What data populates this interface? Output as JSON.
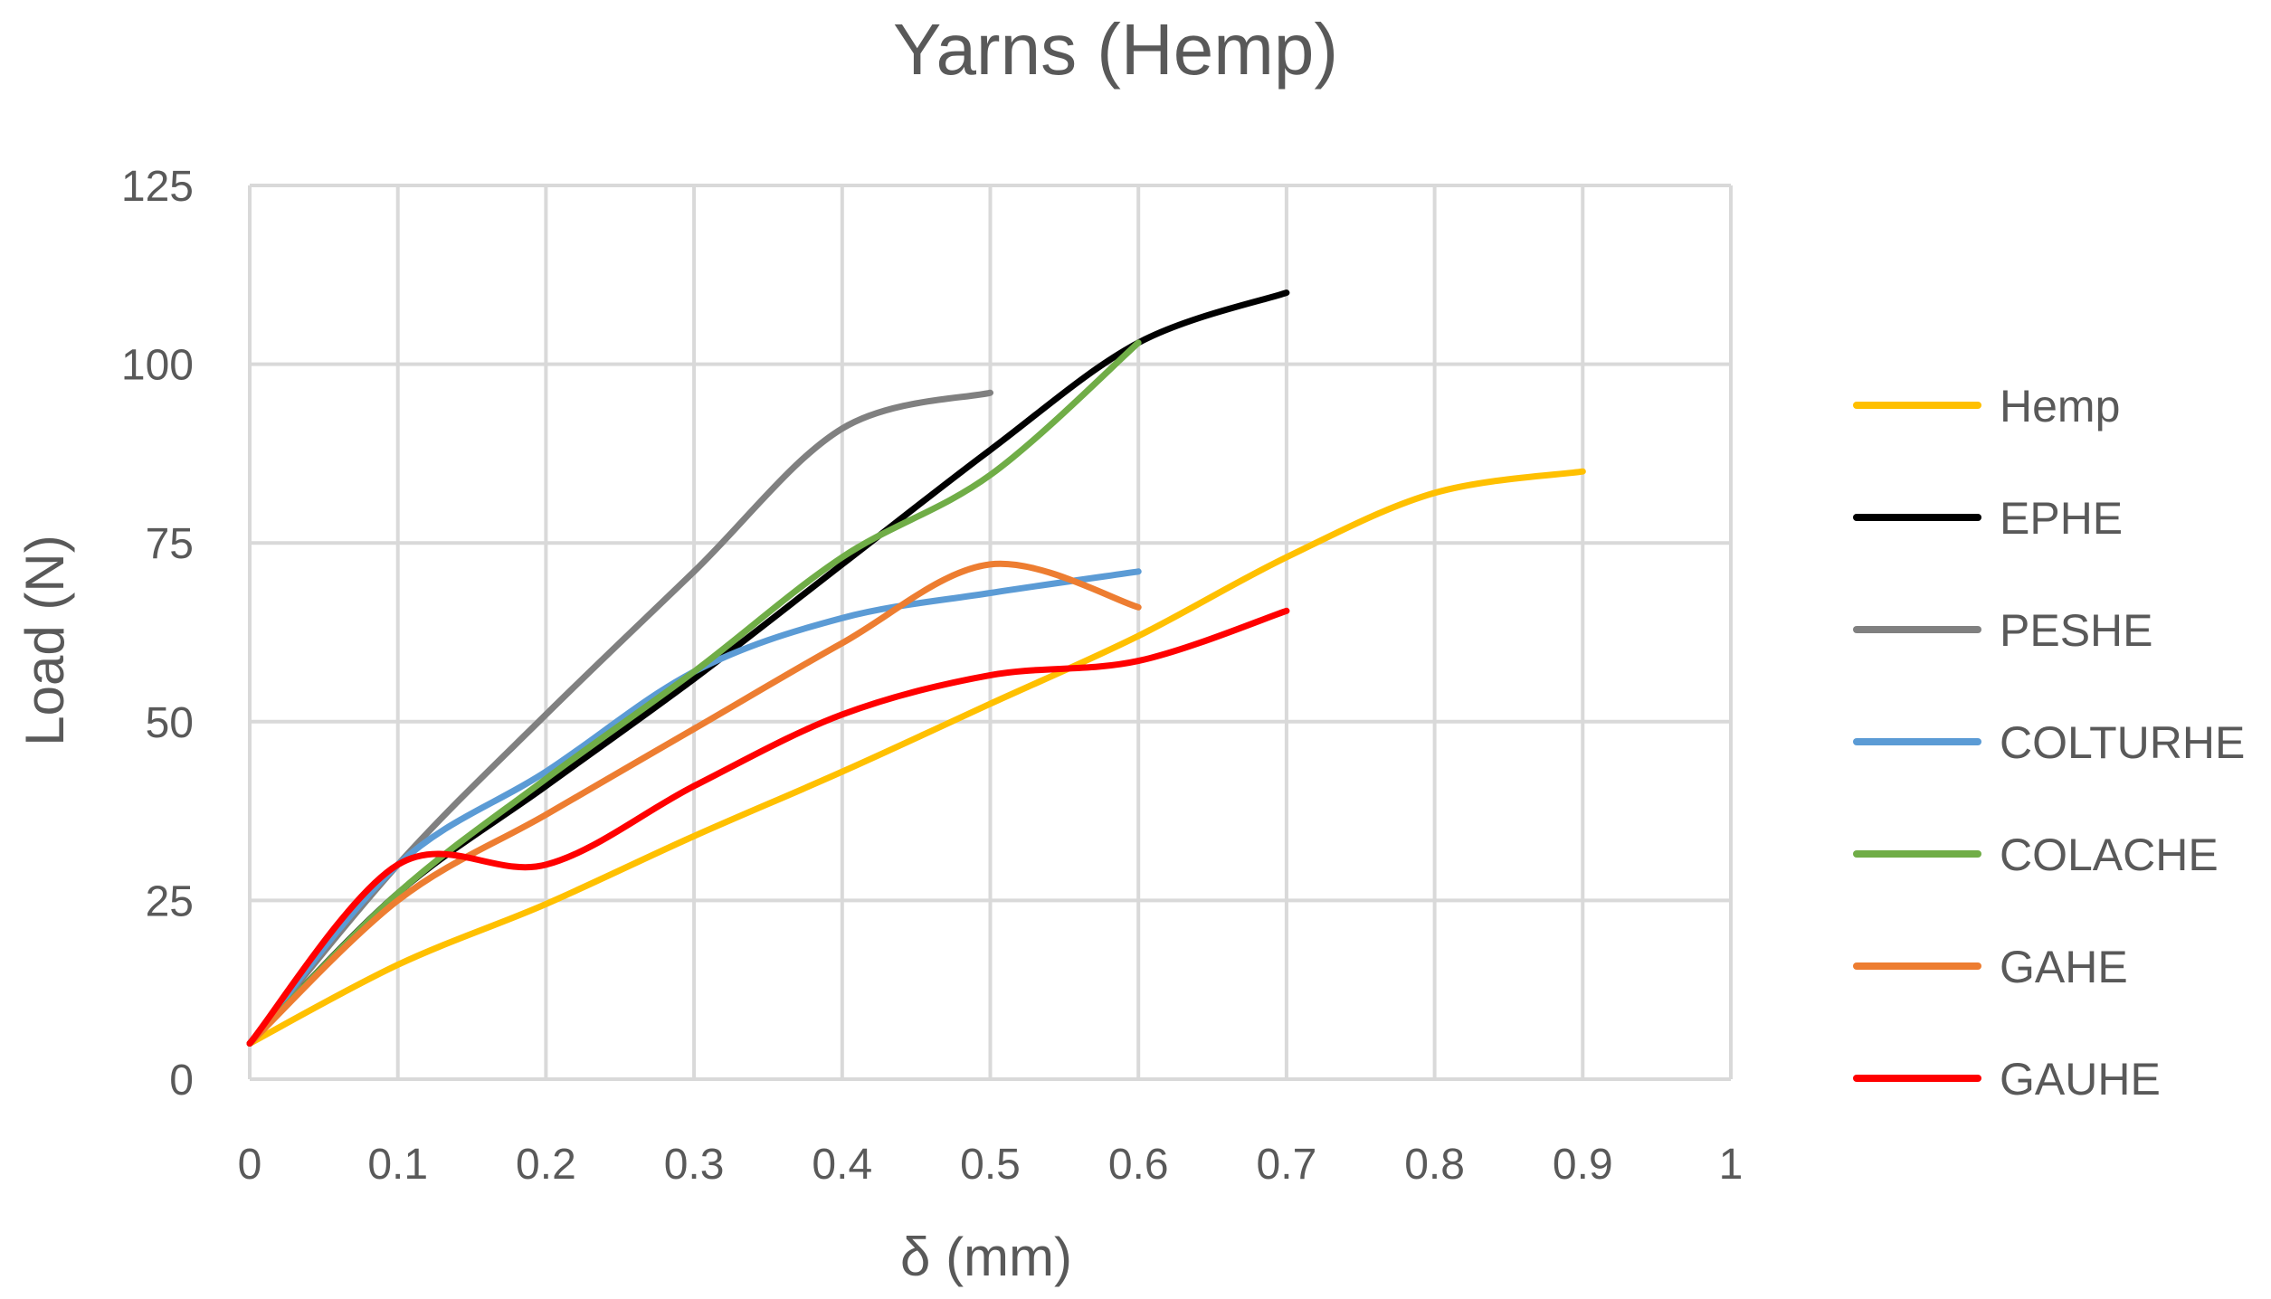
{
  "chart_data": {
    "type": "line",
    "title": "Yarns (Hemp)",
    "xlabel": "δ (mm)",
    "ylabel": "Load (N)",
    "xlim": [
      0,
      1
    ],
    "ylim": [
      0,
      125
    ],
    "x_ticks": [
      "0",
      "0.1",
      "0.2",
      "0.3",
      "0.4",
      "0.5",
      "0.6",
      "0.7",
      "0.8",
      "0.9",
      "1"
    ],
    "y_ticks": [
      "0",
      "25",
      "50",
      "75",
      "100",
      "125"
    ],
    "grid": true,
    "legend_position": "right",
    "series": [
      {
        "name": "Hemp",
        "color": "#ffc000",
        "points": [
          [
            0,
            5
          ],
          [
            0.1,
            16
          ],
          [
            0.2,
            24.5
          ],
          [
            0.3,
            34
          ],
          [
            0.4,
            43
          ],
          [
            0.5,
            52.5
          ],
          [
            0.6,
            62
          ],
          [
            0.7,
            73
          ],
          [
            0.8,
            82
          ],
          [
            0.9,
            85
          ]
        ]
      },
      {
        "name": "EPHE",
        "color": "#000000",
        "points": [
          [
            0,
            5
          ],
          [
            0.1,
            26
          ],
          [
            0.2,
            41
          ],
          [
            0.3,
            56
          ],
          [
            0.4,
            72
          ],
          [
            0.5,
            88
          ],
          [
            0.6,
            103
          ],
          [
            0.7,
            110
          ]
        ]
      },
      {
        "name": "PESHE",
        "color": "#808080",
        "points": [
          [
            0,
            5
          ],
          [
            0.1,
            30
          ],
          [
            0.2,
            51
          ],
          [
            0.3,
            71
          ],
          [
            0.4,
            91
          ],
          [
            0.5,
            96
          ]
        ]
      },
      {
        "name": "COLTURHE",
        "color": "#5b9bd5",
        "points": [
          [
            0,
            5
          ],
          [
            0.1,
            30
          ],
          [
            0.2,
            43
          ],
          [
            0.3,
            57
          ],
          [
            0.4,
            64.5
          ],
          [
            0.5,
            68
          ],
          [
            0.6,
            71
          ]
        ]
      },
      {
        "name": "COLACHE",
        "color": "#70ad47",
        "points": [
          [
            0,
            5
          ],
          [
            0.1,
            26
          ],
          [
            0.2,
            42
          ],
          [
            0.3,
            57
          ],
          [
            0.4,
            73
          ],
          [
            0.5,
            84.5
          ],
          [
            0.6,
            103
          ]
        ]
      },
      {
        "name": "GAHE",
        "color": "#ed7d31",
        "points": [
          [
            0,
            5
          ],
          [
            0.1,
            25
          ],
          [
            0.2,
            37
          ],
          [
            0.3,
            49
          ],
          [
            0.4,
            61
          ],
          [
            0.5,
            72
          ],
          [
            0.6,
            66
          ]
        ]
      },
      {
        "name": "GAUHE",
        "color": "#ff0000",
        "points": [
          [
            0,
            5
          ],
          [
            0.1,
            30
          ],
          [
            0.2,
            30
          ],
          [
            0.3,
            41
          ],
          [
            0.4,
            51
          ],
          [
            0.5,
            56.5
          ],
          [
            0.6,
            58.5
          ],
          [
            0.7,
            65.5
          ]
        ]
      }
    ]
  }
}
